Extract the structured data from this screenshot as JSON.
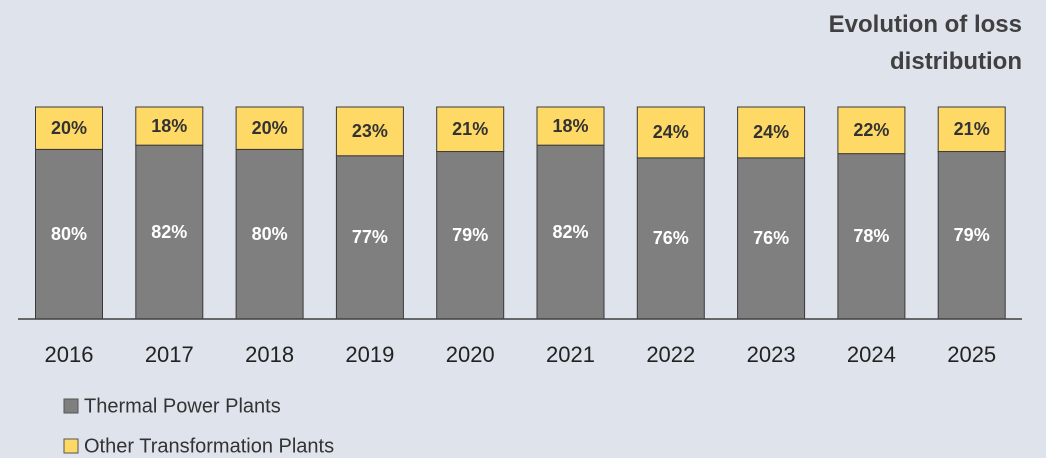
{
  "chart_data": {
    "type": "stacked_bar",
    "title": "Evolution of loss distribution",
    "categories": [
      "2016",
      "2017",
      "2018",
      "2019",
      "2020",
      "2021",
      "2022",
      "2023",
      "2024",
      "2025"
    ],
    "series": [
      {
        "name": "Thermal Power Plants",
        "color": "#7f7f7f",
        "values": [
          80,
          82,
          80,
          77,
          79,
          82,
          76,
          76,
          78,
          79
        ],
        "value_labels": [
          "80%",
          "82%",
          "80%",
          "77%",
          "79%",
          "82%",
          "76%",
          "76%",
          "78%",
          "79%"
        ]
      },
      {
        "name": "Other Transformation Plants",
        "color": "#ffd966",
        "values": [
          20,
          18,
          20,
          23,
          21,
          18,
          24,
          24,
          22,
          21
        ],
        "value_labels": [
          "20%",
          "18%",
          "20%",
          "23%",
          "21%",
          "18%",
          "24%",
          "24%",
          "22%",
          "21%"
        ]
      }
    ],
    "ylim": [
      0,
      100
    ]
  }
}
